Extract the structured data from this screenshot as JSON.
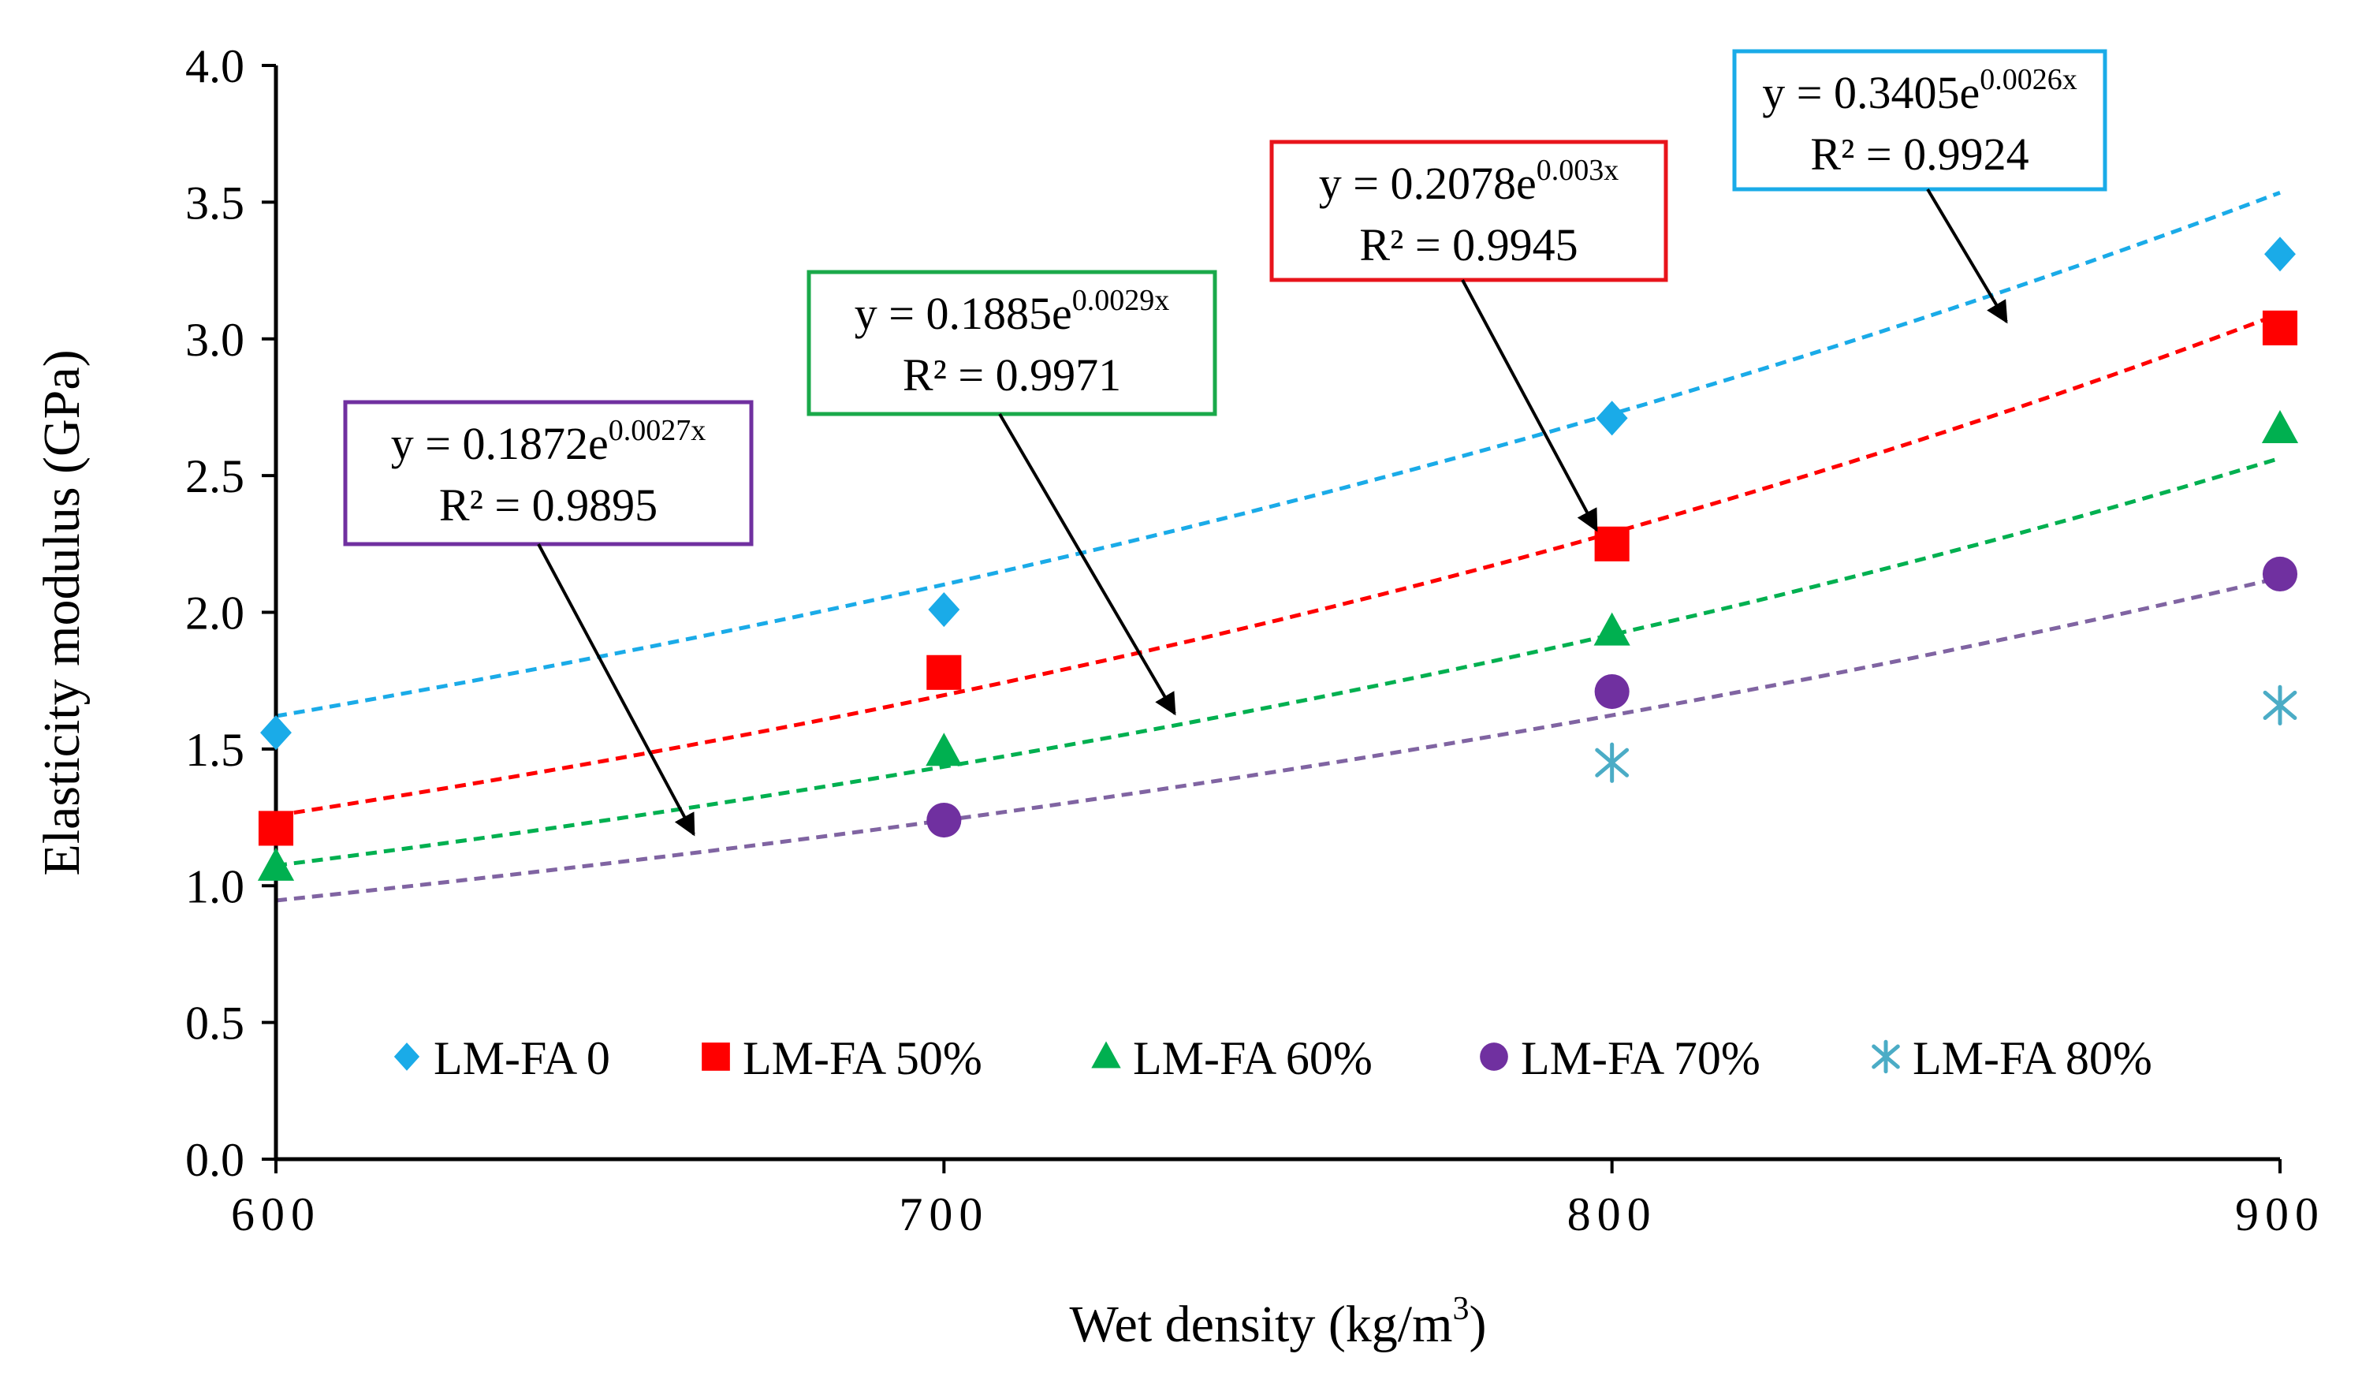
{
  "chart_data": {
    "type": "scatter",
    "title": "",
    "xlabel": "Wet density (kg/m",
    "xlabel_sup": "3",
    "xlabel_end": ")",
    "ylabel": "Elasticity modulus (GPa)",
    "xlim": [
      600,
      900
    ],
    "ylim": [
      0,
      4
    ],
    "xticks": [
      600,
      700,
      800,
      900
    ],
    "yticks": [
      0,
      0.5,
      1,
      1.5,
      2,
      2.5,
      3,
      3.5,
      4
    ],
    "grid": false,
    "legend_position": "bottom",
    "series": [
      {
        "name": "LM-FA 0",
        "marker": "diamond",
        "color": "#1aabe8",
        "x": [
          600,
          700,
          800,
          900
        ],
        "y": [
          1.56,
          2.01,
          2.71,
          3.31
        ],
        "trendline": {
          "a": 0.3405,
          "b": 0.0026,
          "color": "#1aabe8"
        },
        "equation": {
          "base": "y = 0.3405e",
          "exp": "0.0026x",
          "r2": "R² = 0.9924",
          "box_color": "#1aabe8"
        }
      },
      {
        "name": "LM-FA 50%",
        "marker": "square",
        "color": "#ff0000",
        "x": [
          600,
          700,
          800,
          900
        ],
        "y": [
          1.21,
          1.78,
          2.25,
          3.04
        ],
        "trendline": {
          "a": 0.2078,
          "b": 0.003,
          "color": "#ff0000"
        },
        "equation": {
          "base": "y = 0.2078e",
          "exp": "0.003x",
          "r2": "R² = 0.9945",
          "box_color": "#e8141b"
        }
      },
      {
        "name": "LM-FA 60%",
        "marker": "triangle",
        "color": "#00b050",
        "x": [
          600,
          700,
          800,
          900
        ],
        "y": [
          1.07,
          1.49,
          1.93,
          2.67
        ],
        "trendline": {
          "a": 0.1885,
          "b": 0.0029,
          "color": "#00b050"
        },
        "equation": {
          "base": "y = 0.1885e",
          "exp": "0.0029x",
          "r2": "R² = 0.9971",
          "box_color": "#1aa94a"
        }
      },
      {
        "name": "LM-FA 70%",
        "marker": "circle",
        "color": "#7030a0",
        "x": [
          700,
          800,
          900
        ],
        "y": [
          1.24,
          1.71,
          2.14
        ],
        "trendline": {
          "a": 0.1872,
          "b": 0.0027,
          "color": "#8064a2"
        },
        "equation": {
          "base": "y = 0.1872e",
          "exp": "0.0027x",
          "r2": "R² = 0.9895",
          "box_color": "#7030a0"
        }
      },
      {
        "name": "LM-FA 80%",
        "marker": "asterisk",
        "color": "#4bacc6",
        "x": [
          800,
          900
        ],
        "y": [
          1.45,
          1.66
        ]
      }
    ]
  }
}
